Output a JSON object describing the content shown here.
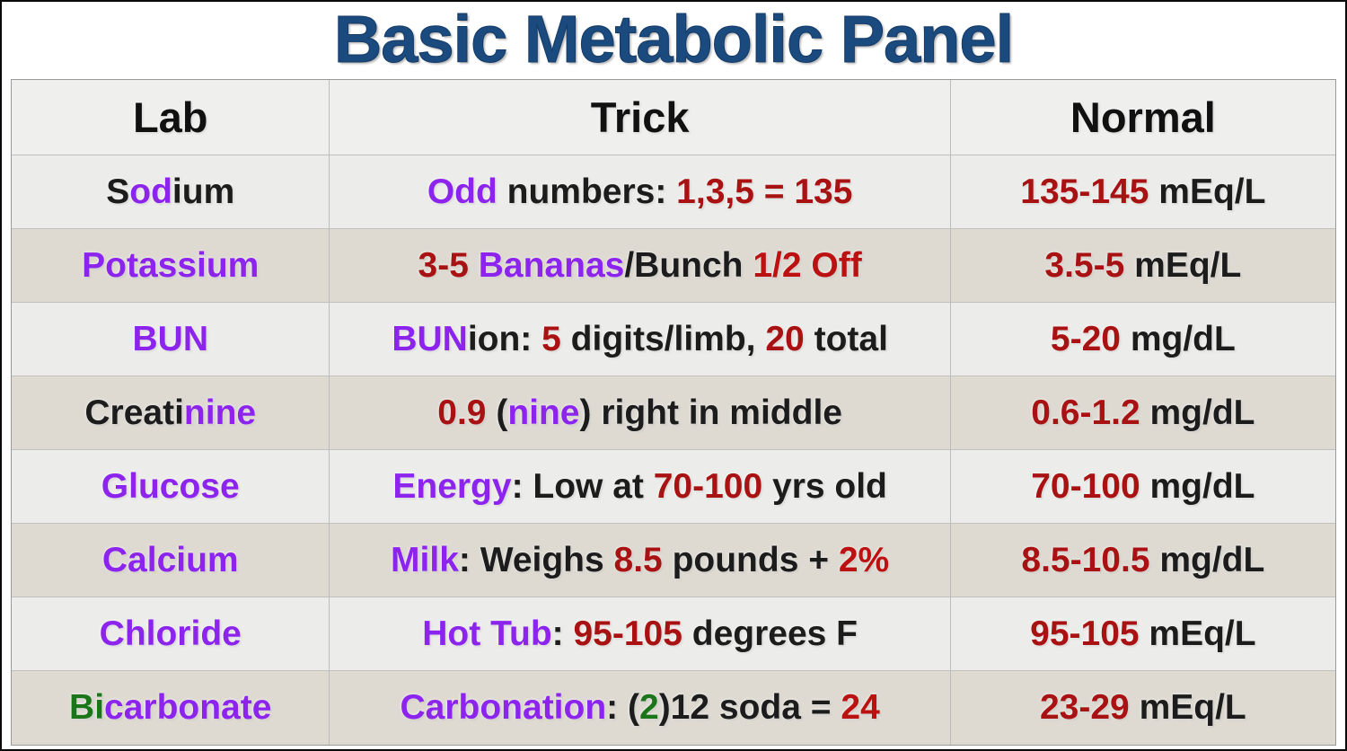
{
  "title": "Basic Metabolic Panel",
  "colors": {
    "black": "#1c1c1c",
    "purple": "#8C24EE",
    "red": "#A91212",
    "red2": "#BB1111",
    "green": "#1A7619",
    "title_blue": "#1B4A7E",
    "row_light": "#ECECEA",
    "row_dark": "#DEDAD2",
    "header_bg": "#EFEFEE"
  },
  "table": {
    "headers": [
      "Lab",
      "Trick",
      "Normal"
    ],
    "rows": [
      {
        "lab": [
          {
            "t": "S",
            "c": "black"
          },
          {
            "t": "od",
            "c": "purple"
          },
          {
            "t": "ium",
            "c": "black"
          }
        ],
        "trick": [
          {
            "t": "Odd",
            "c": "purple"
          },
          {
            "t": " numbers: ",
            "c": "black"
          },
          {
            "t": "1,3,5 = 135",
            "c": "red"
          }
        ],
        "normal": [
          {
            "t": "135-145",
            "c": "red"
          },
          {
            "t": " mEq/L",
            "c": "black"
          }
        ]
      },
      {
        "lab": [
          {
            "t": "Potassium",
            "c": "purple"
          }
        ],
        "trick": [
          {
            "t": "3-5 ",
            "c": "red"
          },
          {
            "t": "Bananas",
            "c": "purple"
          },
          {
            "t": "/Bunch ",
            "c": "black"
          },
          {
            "t": "1/2 Off",
            "c": "red2"
          }
        ],
        "normal": [
          {
            "t": "3.5-5",
            "c": "red"
          },
          {
            "t": " mEq/L",
            "c": "black"
          }
        ]
      },
      {
        "lab": [
          {
            "t": "BUN",
            "c": "purple"
          }
        ],
        "trick": [
          {
            "t": "BUN",
            "c": "purple"
          },
          {
            "t": "ion: ",
            "c": "black"
          },
          {
            "t": "5",
            "c": "red"
          },
          {
            "t": " digits/limb, ",
            "c": "black"
          },
          {
            "t": "20",
            "c": "red"
          },
          {
            "t": " total",
            "c": "black"
          }
        ],
        "normal": [
          {
            "t": "5-20",
            "c": "red"
          },
          {
            "t": " mg/dL",
            "c": "black"
          }
        ]
      },
      {
        "lab": [
          {
            "t": "Creati",
            "c": "black"
          },
          {
            "t": "nine",
            "c": "purple"
          }
        ],
        "trick": [
          {
            "t": "0.9",
            "c": "red"
          },
          {
            "t": " (",
            "c": "black"
          },
          {
            "t": "nine",
            "c": "purple"
          },
          {
            "t": ") right in middle",
            "c": "black"
          }
        ],
        "normal": [
          {
            "t": "0.6-1.2",
            "c": "red"
          },
          {
            "t": " mg/dL",
            "c": "black"
          }
        ]
      },
      {
        "lab": [
          {
            "t": "Glucose",
            "c": "purple"
          }
        ],
        "trick": [
          {
            "t": "Energy",
            "c": "purple"
          },
          {
            "t": ": Low at ",
            "c": "black"
          },
          {
            "t": "70-100",
            "c": "red"
          },
          {
            "t": " yrs old",
            "c": "black"
          }
        ],
        "normal": [
          {
            "t": "70-100",
            "c": "red"
          },
          {
            "t": " mg/dL",
            "c": "black"
          }
        ]
      },
      {
        "lab": [
          {
            "t": "Calcium",
            "c": "purple"
          }
        ],
        "trick": [
          {
            "t": "Milk",
            "c": "purple"
          },
          {
            "t": ": Weighs ",
            "c": "black"
          },
          {
            "t": "8.5",
            "c": "red"
          },
          {
            "t": " pounds + ",
            "c": "black"
          },
          {
            "t": "2%",
            "c": "red2"
          }
        ],
        "normal": [
          {
            "t": "8.5-10.5",
            "c": "red"
          },
          {
            "t": " mg/dL",
            "c": "black"
          }
        ]
      },
      {
        "lab": [
          {
            "t": "Chloride",
            "c": "purple"
          }
        ],
        "trick": [
          {
            "t": "Hot Tub",
            "c": "purple"
          },
          {
            "t": ": ",
            "c": "black"
          },
          {
            "t": "95-105",
            "c": "red"
          },
          {
            "t": " degrees F",
            "c": "black"
          }
        ],
        "normal": [
          {
            "t": "95-105",
            "c": "red"
          },
          {
            "t": " mEq/L",
            "c": "black"
          }
        ]
      },
      {
        "lab": [
          {
            "t": "Bi",
            "c": "green"
          },
          {
            "t": "carbonate",
            "c": "purple"
          }
        ],
        "trick": [
          {
            "t": "Carbonation",
            "c": "purple"
          },
          {
            "t": ": (",
            "c": "black"
          },
          {
            "t": "2",
            "c": "green"
          },
          {
            "t": ")12 soda = ",
            "c": "black"
          },
          {
            "t": "24",
            "c": "red2"
          }
        ],
        "normal": [
          {
            "t": "23-29",
            "c": "red"
          },
          {
            "t": " mEq/L",
            "c": "black"
          }
        ]
      }
    ]
  }
}
